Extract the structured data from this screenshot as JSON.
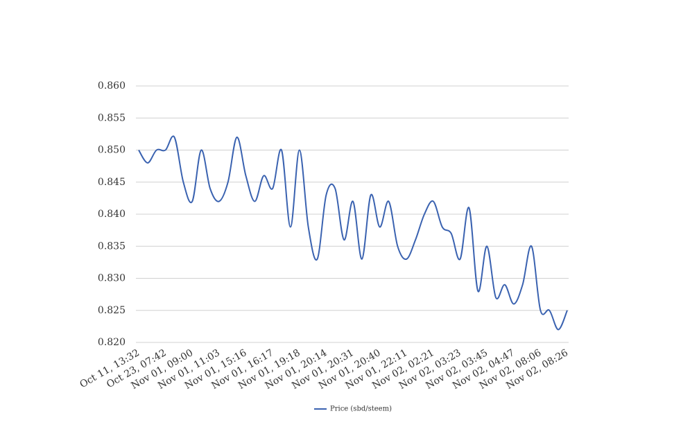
{
  "chart_data": {
    "type": "line",
    "categories": [
      "Oct 11, 13:32",
      null,
      null,
      "Oct 23, 07:42",
      null,
      null,
      "Nov 01, 09:00",
      null,
      null,
      "Nov 01, 11:03",
      null,
      null,
      "Nov 01, 15:16",
      null,
      null,
      "Nov 01, 16:17",
      null,
      null,
      "Nov 01, 19:18",
      null,
      null,
      "Nov 01, 20:14",
      null,
      null,
      "Nov 01, 20:31",
      null,
      null,
      "Nov 01, 20:40",
      null,
      null,
      "Nov 01, 22:11",
      null,
      null,
      "Nov 02, 02:21",
      null,
      null,
      "Nov 02, 03:23",
      null,
      null,
      "Nov 02, 03:45",
      null,
      null,
      "Nov 02, 04:47",
      null,
      null,
      "Nov 02, 08:06",
      null,
      null,
      "Nov 02, 08:26"
    ],
    "series": [
      {
        "name": "Price (sbd/steem)",
        "color": "#3a62b0",
        "values": [
          0.85,
          0.848,
          0.85,
          0.85,
          0.852,
          0.845,
          0.842,
          0.85,
          0.844,
          0.842,
          0.845,
          0.852,
          0.846,
          0.842,
          0.846,
          0.844,
          0.85,
          0.838,
          0.85,
          0.838,
          0.833,
          0.843,
          0.844,
          0.836,
          0.842,
          0.833,
          0.843,
          0.838,
          0.842,
          0.835,
          0.833,
          0.836,
          0.84,
          0.842,
          0.838,
          0.837,
          0.833,
          0.841,
          0.828,
          0.835,
          0.827,
          0.829,
          0.826,
          0.829,
          0.835,
          0.825,
          0.825,
          0.822,
          0.825
        ]
      }
    ],
    "ylim": [
      0.82,
      0.86
    ],
    "yticks": [
      {
        "value": 0.82,
        "label": "0.820"
      },
      {
        "value": 0.825,
        "label": "0.825"
      },
      {
        "value": 0.83,
        "label": "0.830"
      },
      {
        "value": 0.835,
        "label": "0.835"
      },
      {
        "value": 0.84,
        "label": "0.840"
      },
      {
        "value": 0.845,
        "label": "0.845"
      },
      {
        "value": 0.85,
        "label": "0.850"
      },
      {
        "value": 0.855,
        "label": "0.855"
      },
      {
        "value": 0.86,
        "label": "0.860"
      }
    ],
    "grid": true,
    "legend": "bottom"
  }
}
